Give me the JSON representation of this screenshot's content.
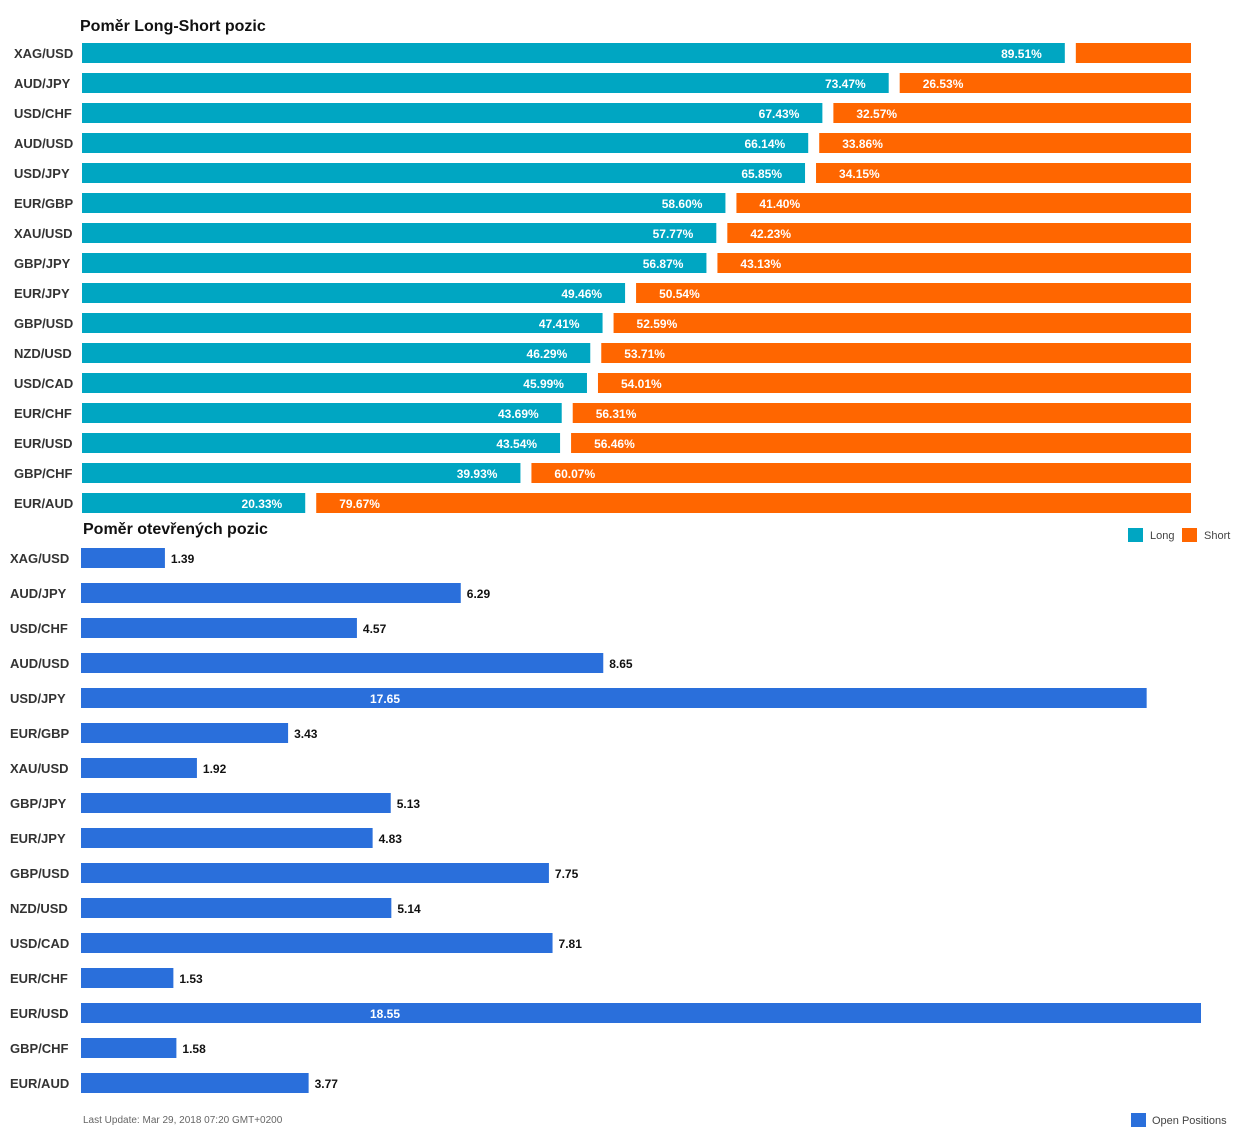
{
  "chart_data": [
    {
      "type": "bar",
      "orientation": "horizontal",
      "stacked": true,
      "title": "Poměr Long-Short pozic",
      "categories": [
        "XAG/USD",
        "AUD/JPY",
        "USD/CHF",
        "AUD/USD",
        "USD/JPY",
        "EUR/GBP",
        "XAU/USD",
        "GBP/JPY",
        "EUR/JPY",
        "GBP/USD",
        "NZD/USD",
        "USD/CAD",
        "EUR/CHF",
        "EUR/USD",
        "GBP/CHF",
        "EUR/AUD"
      ],
      "series": [
        {
          "name": "Long",
          "color": "#00a6c2",
          "values": [
            89.51,
            73.47,
            67.43,
            66.14,
            65.85,
            58.6,
            57.77,
            56.87,
            49.46,
            47.41,
            46.29,
            45.99,
            43.69,
            43.54,
            39.93,
            20.33
          ],
          "labels": [
            "89.51%",
            "73.47%",
            "67.43%",
            "66.14%",
            "65.85%",
            "58.60%",
            "57.77%",
            "56.87%",
            "49.46%",
            "47.41%",
            "46.29%",
            "45.99%",
            "43.69%",
            "43.54%",
            "39.93%",
            "20.33%"
          ]
        },
        {
          "name": "Short",
          "color": "#ff6600",
          "values": [
            10.49,
            26.53,
            32.57,
            33.86,
            34.15,
            41.4,
            42.23,
            43.13,
            50.54,
            52.59,
            53.71,
            54.01,
            56.31,
            56.46,
            60.07,
            79.67
          ],
          "labels": [
            "",
            "26.53%",
            "32.57%",
            "33.86%",
            "34.15%",
            "41.40%",
            "42.23%",
            "43.13%",
            "50.54%",
            "52.59%",
            "53.71%",
            "54.01%",
            "56.31%",
            "56.46%",
            "60.07%",
            "79.67%"
          ]
        }
      ],
      "xlim": [
        0,
        100
      ],
      "grid": false,
      "legend": "bottom-right"
    },
    {
      "type": "bar",
      "orientation": "horizontal",
      "title": "Poměr otevřených pozic",
      "categories": [
        "XAG/USD",
        "AUD/JPY",
        "USD/CHF",
        "AUD/USD",
        "USD/JPY",
        "EUR/GBP",
        "XAU/USD",
        "GBP/JPY",
        "EUR/JPY",
        "GBP/USD",
        "NZD/USD",
        "USD/CAD",
        "EUR/CHF",
        "EUR/USD",
        "GBP/CHF",
        "EUR/AUD"
      ],
      "series": [
        {
          "name": "Open Positions",
          "color": "#2a6fdb",
          "values": [
            1.39,
            6.29,
            4.57,
            8.65,
            17.65,
            3.43,
            1.92,
            5.13,
            4.83,
            7.75,
            5.14,
            7.81,
            1.53,
            18.55,
            1.58,
            3.77
          ],
          "labels": [
            "1.39",
            "6.29",
            "4.57",
            "8.65",
            "17.65",
            "3.43",
            "1.92",
            "5.13",
            "4.83",
            "7.75",
            "5.14",
            "7.81",
            "1.53",
            "18.55",
            "1.58",
            "3.77"
          ]
        }
      ],
      "xlim": [
        0,
        18.55
      ],
      "grid": false,
      "legend": "bottom-right"
    }
  ],
  "footer": {
    "last_update": "Last Update: Mar 29, 2018 07:20 GMT+0200"
  }
}
